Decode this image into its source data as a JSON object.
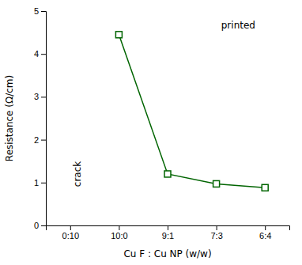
{
  "chart_data": {
    "type": "line",
    "xlabel": "Cu F : Cu NP (w/w)",
    "ylabel": "Resistance (Ω/cm)",
    "categories": [
      "0:10",
      "10:0",
      "9:1",
      "7:3",
      "6:4"
    ],
    "values": [
      null,
      4.45,
      1.2,
      0.97,
      0.88
    ],
    "color": "#006400",
    "marker": "square",
    "ylim": [
      0,
      5
    ],
    "yticks": [
      0,
      1,
      2,
      3,
      4,
      5
    ],
    "grid": false,
    "annotations": [
      "printed",
      "crack"
    ]
  }
}
